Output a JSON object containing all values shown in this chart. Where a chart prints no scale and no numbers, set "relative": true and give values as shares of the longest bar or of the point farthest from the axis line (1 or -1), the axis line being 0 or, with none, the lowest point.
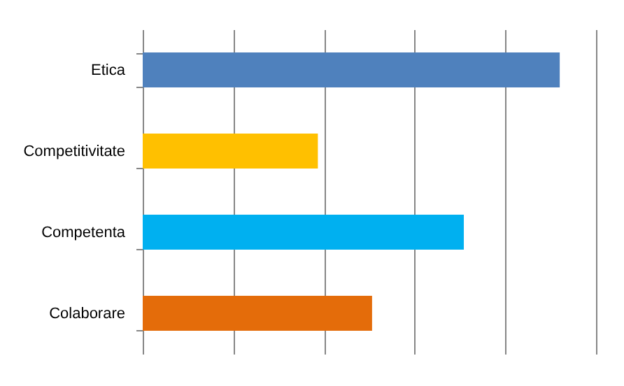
{
  "chart_data": {
    "type": "bar",
    "orientation": "horizontal",
    "relative": true,
    "grid": "x",
    "categories": [
      "Etica",
      "Competitivitate",
      "Competenta",
      "Colaborare"
    ],
    "values": [
      1,
      0.42,
      0.77,
      0.55
    ],
    "colors": [
      "#4f81bd",
      "#ffc000",
      "#00b0f0",
      "#e46c0a"
    ]
  }
}
